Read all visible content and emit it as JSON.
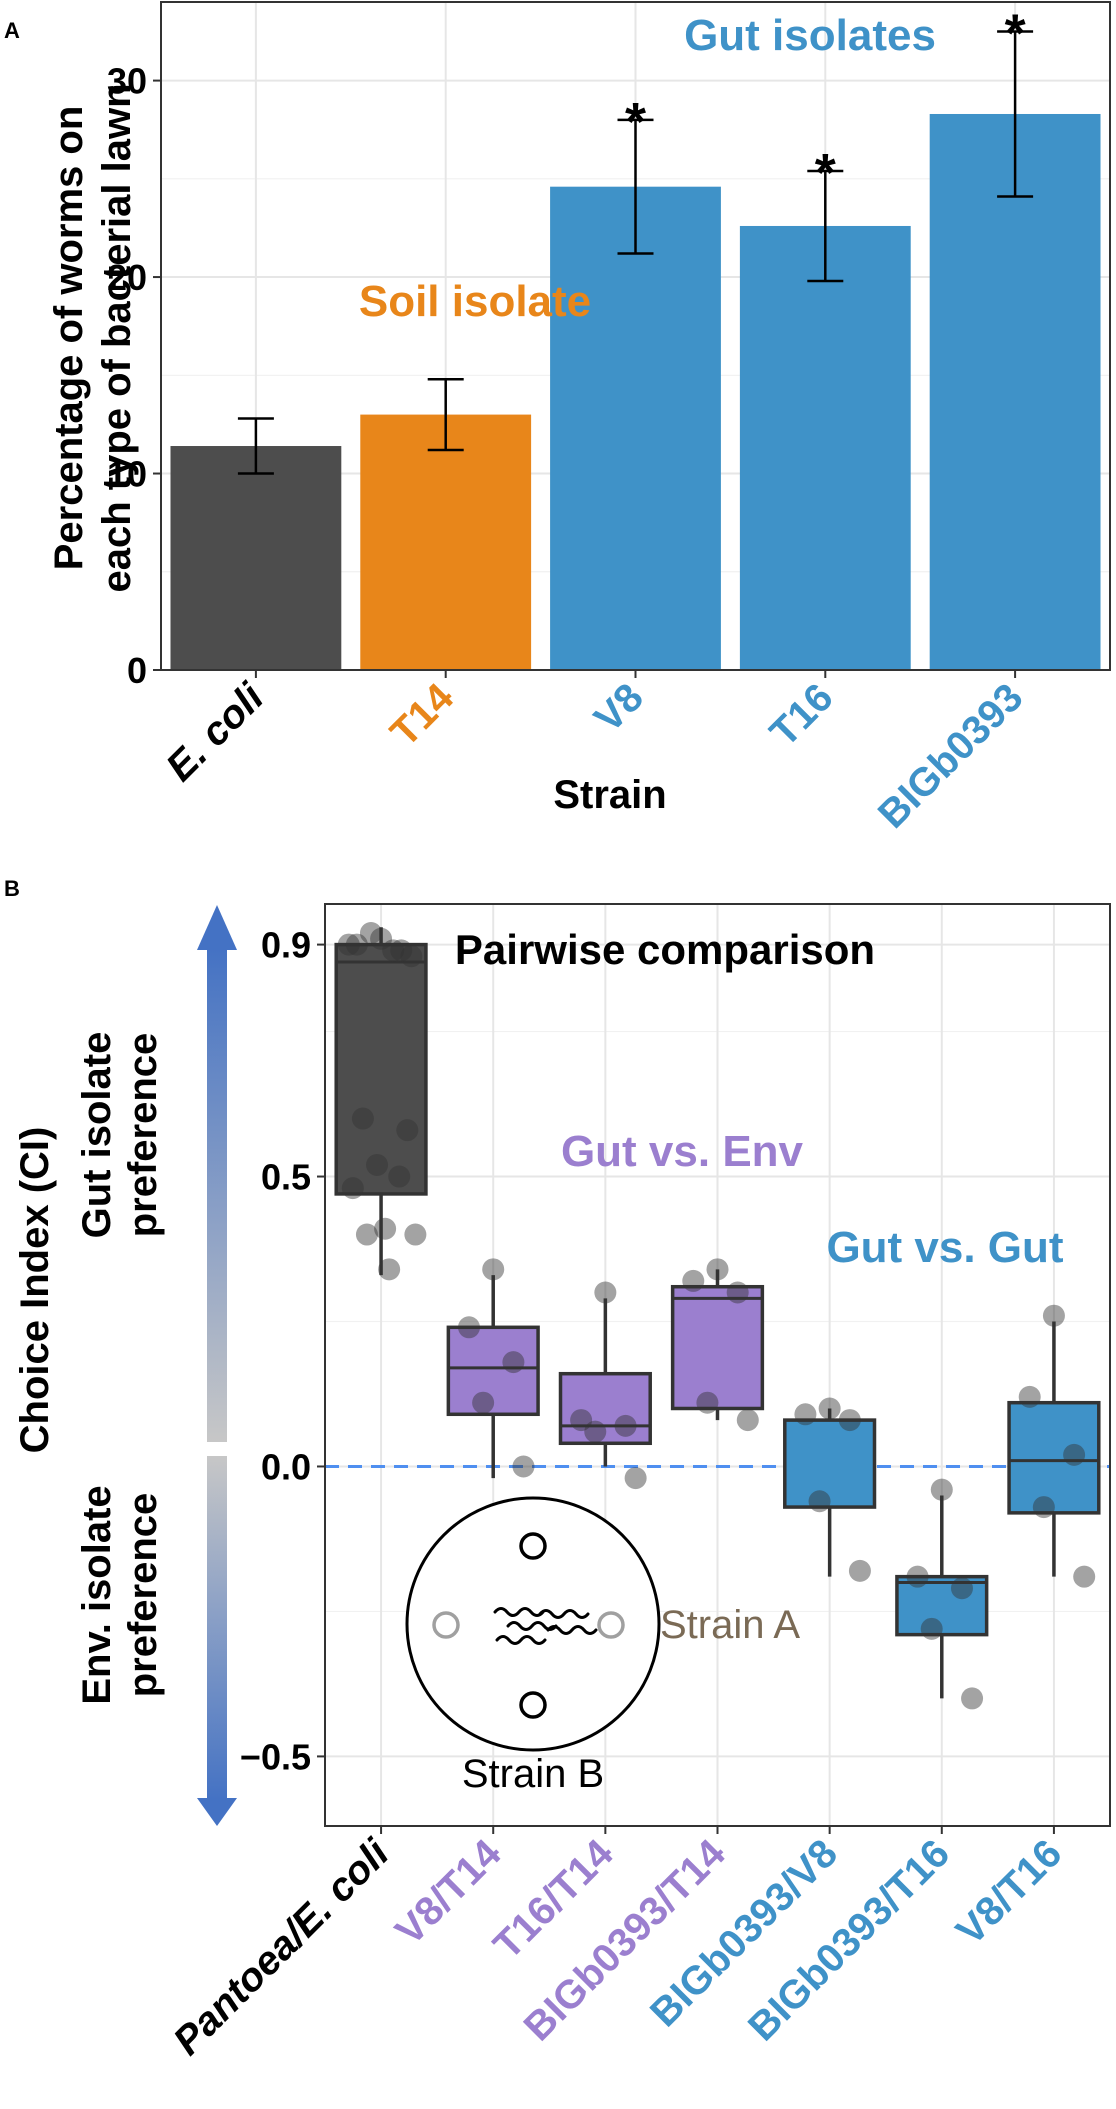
{
  "chart_data": [
    {
      "panel": "A",
      "type": "bar",
      "xlabel": "Strain",
      "ylabel": "Percentage of worms on each type of bacterial lawn",
      "ylabel_lines": [
        "Percentage of worms on",
        "each type of bacterial lawn"
      ],
      "ylim": [
        0,
        34
      ],
      "yticks": [
        0,
        10,
        20,
        30
      ],
      "categories": [
        "E. coli",
        "T14",
        "V8",
        "T16",
        "BIGb0393"
      ],
      "values": [
        11.4,
        13.0,
        24.6,
        22.6,
        28.3
      ],
      "error_low": [
        10.0,
        11.2,
        21.2,
        19.8,
        24.1
      ],
      "error_high": [
        12.8,
        14.8,
        28.0,
        25.4,
        32.5
      ],
      "significance": [
        "",
        "",
        "*",
        "*",
        "*"
      ],
      "colors": [
        "#4d4d4d",
        "#e8861a",
        "#3f92c8",
        "#3f92c8",
        "#3f92c8"
      ],
      "annotations": [
        {
          "text": "Soil isolate",
          "color": "#e8861a"
        },
        {
          "text": "Gut isolates",
          "color": "#3f92c8"
        }
      ]
    },
    {
      "panel": "B",
      "type": "box",
      "xlabel": "",
      "ylabel": "Choice Index (CI)",
      "ylim": [
        -0.62,
        0.97
      ],
      "yticks": [
        -0.5,
        0.0,
        0.5,
        0.9
      ],
      "ytick_labels": [
        "−0.5",
        "0.0",
        "0.5",
        "0.9"
      ],
      "reference_line": 0.0,
      "title": "Pairwise comparison",
      "categories": [
        "Pantoea/E. coli",
        "V8/T14",
        "T16/T14",
        "BIGb0393/T14",
        "BIGb0393/V8",
        "BIGb0393/T16",
        "V8/T16"
      ],
      "category_colors": [
        "#000000",
        "#9b7fcf",
        "#9b7fcf",
        "#9b7fcf",
        "#3f92c8",
        "#3f92c8",
        "#3f92c8"
      ],
      "box_colors": [
        "#4d4d4d",
        "#9b7fcf",
        "#9b7fcf",
        "#9b7fcf",
        "#3f92c8",
        "#3f92c8",
        "#3f92c8"
      ],
      "boxes": [
        {
          "q1": 0.47,
          "median": 0.87,
          "q3": 0.9,
          "whisker_low": 0.33,
          "whisker_high": 0.93
        },
        {
          "q1": 0.09,
          "median": 0.17,
          "q3": 0.24,
          "whisker_low": -0.02,
          "whisker_high": 0.33
        },
        {
          "q1": 0.04,
          "median": 0.07,
          "q3": 0.16,
          "whisker_low": 0.0,
          "whisker_high": 0.29
        },
        {
          "q1": 0.1,
          "median": 0.29,
          "q3": 0.31,
          "whisker_low": 0.08,
          "whisker_high": 0.34
        },
        {
          "q1": -0.07,
          "median": 0.08,
          "q3": 0.08,
          "whisker_low": -0.19,
          "whisker_high": 0.1
        },
        {
          "q1": -0.29,
          "median": -0.2,
          "q3": -0.19,
          "whisker_low": -0.4,
          "whisker_high": -0.05
        },
        {
          "q1": -0.08,
          "median": 0.01,
          "q3": 0.11,
          "whisker_low": -0.19,
          "whisker_high": 0.25
        }
      ],
      "points": [
        [
          0.91,
          0.9,
          0.89,
          0.92,
          0.88,
          0.9,
          0.89,
          0.6,
          0.58,
          0.52,
          0.5,
          0.48,
          0.41,
          0.4,
          0.4,
          0.34
        ],
        [
          0.34,
          0.24,
          0.18,
          0.11,
          0.0
        ],
        [
          0.3,
          0.08,
          0.07,
          0.06,
          -0.02
        ],
        [
          0.34,
          0.32,
          0.3,
          0.11,
          0.08
        ],
        [
          0.1,
          0.09,
          0.08,
          -0.06,
          -0.18
        ],
        [
          -0.04,
          -0.19,
          -0.21,
          -0.28,
          -0.4
        ],
        [
          0.26,
          0.12,
          0.02,
          -0.07,
          -0.19
        ]
      ],
      "annotations": [
        {
          "text": "Gut vs. Env",
          "color": "#9b7fcf"
        },
        {
          "text": "Gut vs. Gut",
          "color": "#3f92c8"
        }
      ],
      "side_labels": {
        "top": [
          "Gut isolate",
          "preference"
        ],
        "bottom": [
          "Env. isolate",
          "preference"
        ]
      },
      "inset": {
        "strain_a": "Strain A",
        "strain_b": "Strain B"
      }
    }
  ]
}
